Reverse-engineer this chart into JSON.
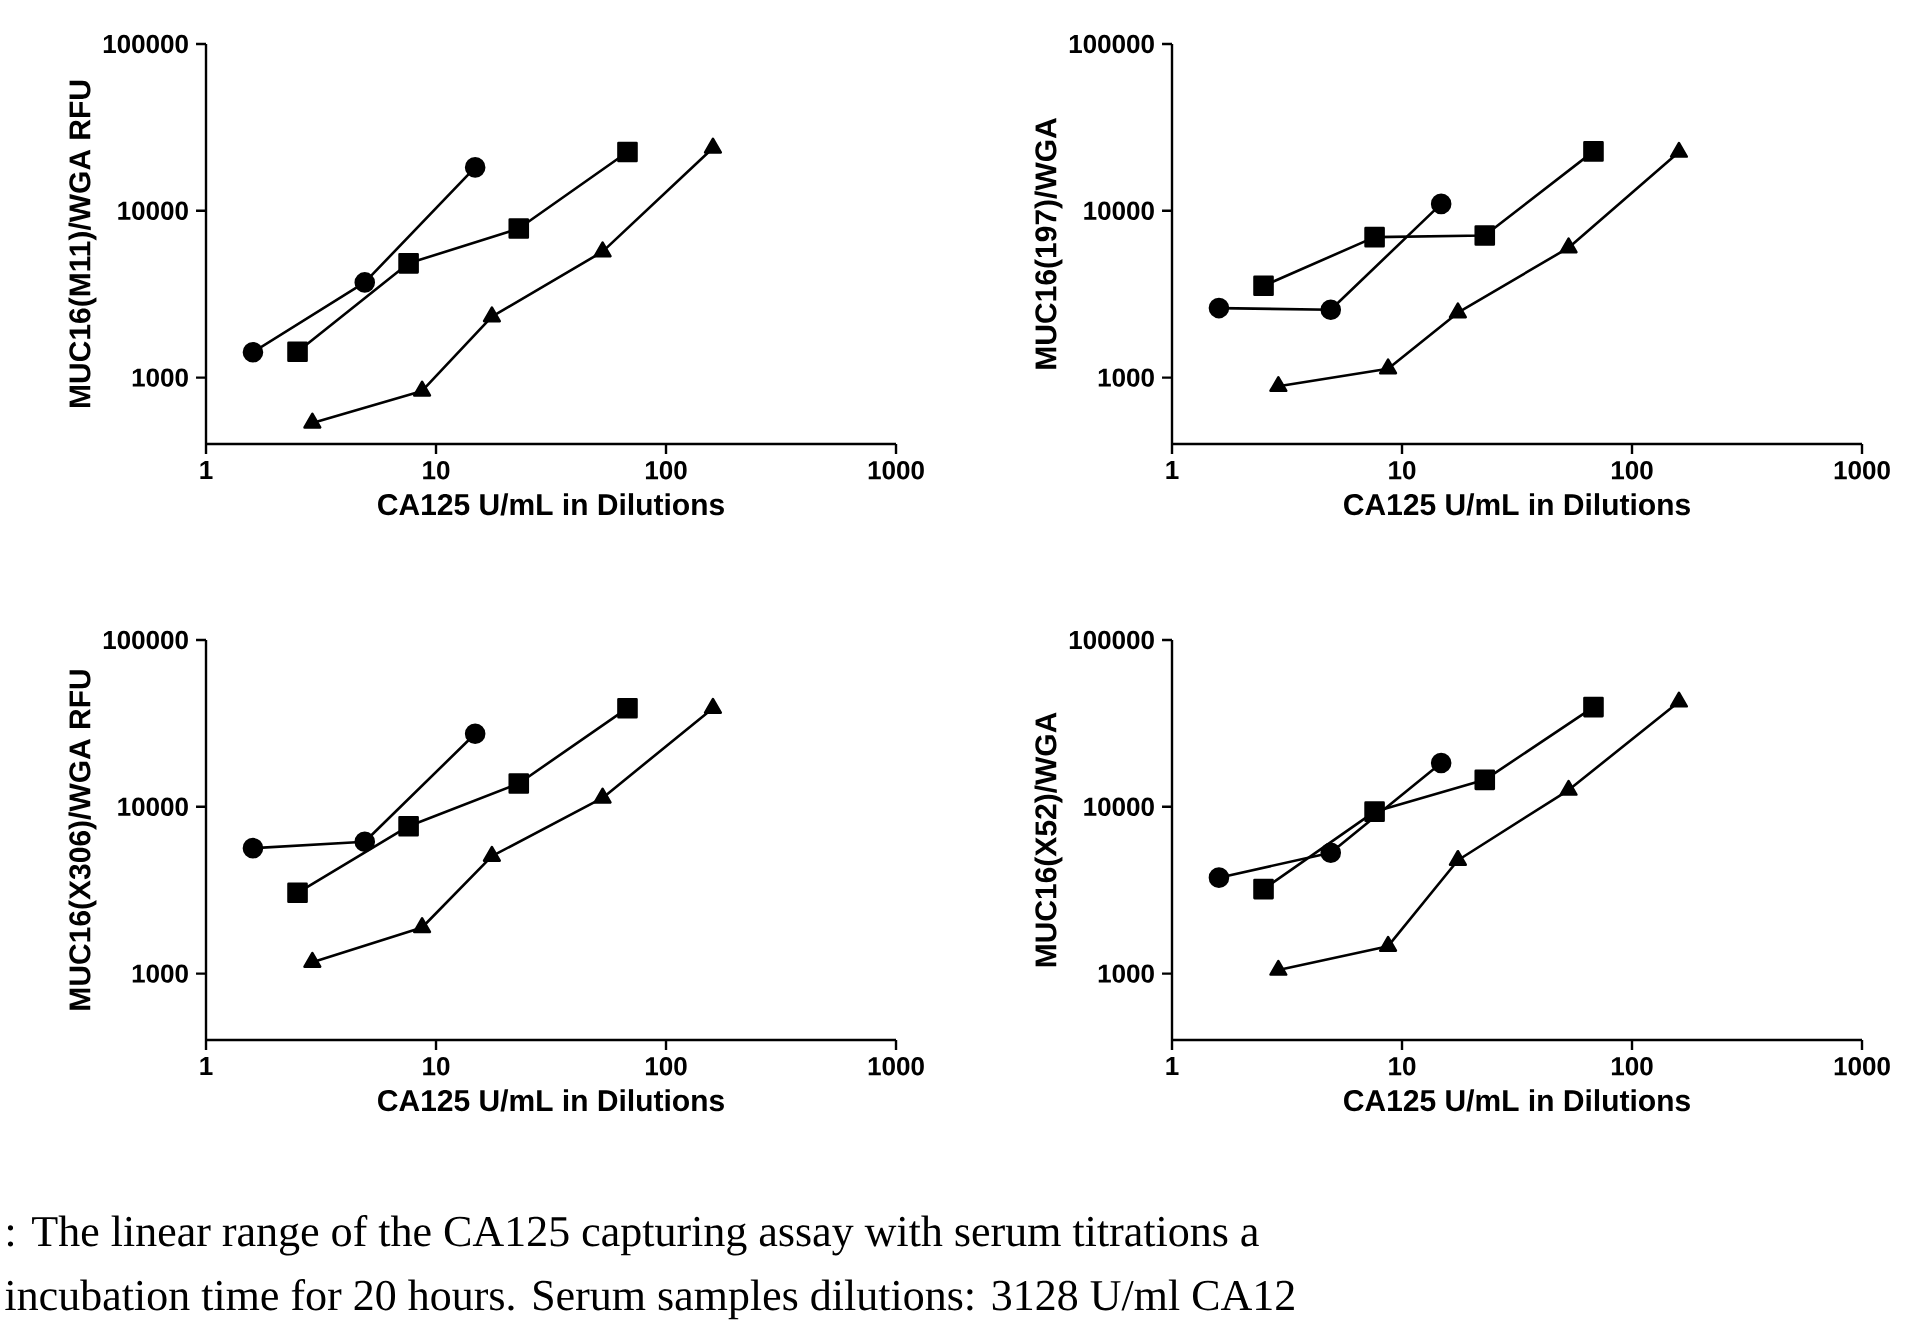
{
  "chart_data": [
    {
      "type": "line",
      "xlabel": "CA125 U/mL in Dilutions",
      "ylabel": "MUC16(M11)/WGA RFU",
      "log": "xy",
      "xlim": [
        1,
        1000
      ],
      "ylim": [
        400,
        100000
      ],
      "xticks": [
        1,
        10,
        100,
        1000
      ],
      "yticks": [
        1000,
        10000,
        100000
      ],
      "series": [
        {
          "color": "#000000",
          "marker": "circle",
          "x": [
            1.6,
            4.9,
            14.8
          ],
          "values": [
            1420,
            3720,
            18200
          ]
        },
        {
          "color": "#000000",
          "marker": "square",
          "x": [
            2.5,
            7.6,
            22.9,
            68
          ],
          "values": [
            1430,
            4840,
            7830,
            22500
          ]
        },
        {
          "color": "#000000",
          "marker": "triangle",
          "x": [
            2.9,
            8.7,
            17.5,
            53,
            160
          ],
          "values": [
            535,
            832,
            2320,
            5690,
            23800
          ]
        }
      ]
    },
    {
      "type": "line",
      "xlabel": "CA125 U/mL in Dilutions",
      "ylabel": "MUC16(197)/WGA",
      "log": "xy",
      "xlim": [
        1,
        1000
      ],
      "ylim": [
        400,
        100000
      ],
      "xticks": [
        1,
        10,
        100,
        1000
      ],
      "yticks": [
        1000,
        10000,
        100000
      ],
      "series": [
        {
          "color": "#000000",
          "marker": "circle",
          "x": [
            1.6,
            4.9,
            14.8
          ],
          "values": [
            2610,
            2550,
            11000
          ]
        },
        {
          "color": "#000000",
          "marker": "square",
          "x": [
            2.5,
            7.6,
            22.9,
            68
          ],
          "values": [
            3550,
            6950,
            7110,
            22700
          ]
        },
        {
          "color": "#000000",
          "marker": "triangle",
          "x": [
            2.9,
            8.7,
            17.5,
            53,
            160
          ],
          "values": [
            887,
            1130,
            2450,
            6010,
            22500
          ]
        }
      ]
    },
    {
      "type": "line",
      "xlabel": "CA125 U/mL in Dilutions",
      "ylabel": "MUC16(X306)/WGA RFU",
      "log": "xy",
      "xlim": [
        1,
        1000
      ],
      "ylim": [
        400,
        100000
      ],
      "xticks": [
        1,
        10,
        100,
        1000
      ],
      "yticks": [
        1000,
        10000,
        100000
      ],
      "series": [
        {
          "color": "#000000",
          "marker": "circle",
          "x": [
            1.6,
            4.9,
            14.8
          ],
          "values": [
            5650,
            6170,
            27400
          ]
        },
        {
          "color": "#000000",
          "marker": "square",
          "x": [
            2.5,
            7.6,
            22.9,
            68
          ],
          "values": [
            3050,
            7650,
            13800,
            39000
          ]
        },
        {
          "color": "#000000",
          "marker": "triangle",
          "x": [
            2.9,
            8.7,
            17.5,
            53,
            160
          ],
          "values": [
            1170,
            1890,
            5060,
            11300,
            39000
          ]
        }
      ]
    },
    {
      "type": "line",
      "xlabel": "CA125 U/mL in Dilutions",
      "ylabel": "MUC16(X52)/WGA",
      "log": "xy",
      "xlim": [
        1,
        1000
      ],
      "ylim": [
        400,
        100000
      ],
      "xticks": [
        1,
        10,
        100,
        1000
      ],
      "yticks": [
        1000,
        10000,
        100000
      ],
      "series": [
        {
          "color": "#000000",
          "marker": "circle",
          "x": [
            1.6,
            4.9,
            14.8
          ],
          "values": [
            3760,
            5300,
            18300
          ]
        },
        {
          "color": "#000000",
          "marker": "square",
          "x": [
            2.5,
            7.6,
            22.9,
            68
          ],
          "values": [
            3210,
            9350,
            14500,
            39600
          ]
        },
        {
          "color": "#000000",
          "marker": "triangle",
          "x": [
            2.9,
            8.7,
            17.5,
            53,
            160
          ],
          "values": [
            1050,
            1460,
            4780,
            12600,
            42600
          ]
        }
      ]
    },
    {
      "type": "other",
      "annotations": [
        ": The linear range of the CA125 capturing assay with serum titrations a",
        "incubation time for 20 hours. Serum samples dilutions: 3128 U/ml CA12"
      ]
    }
  ]
}
